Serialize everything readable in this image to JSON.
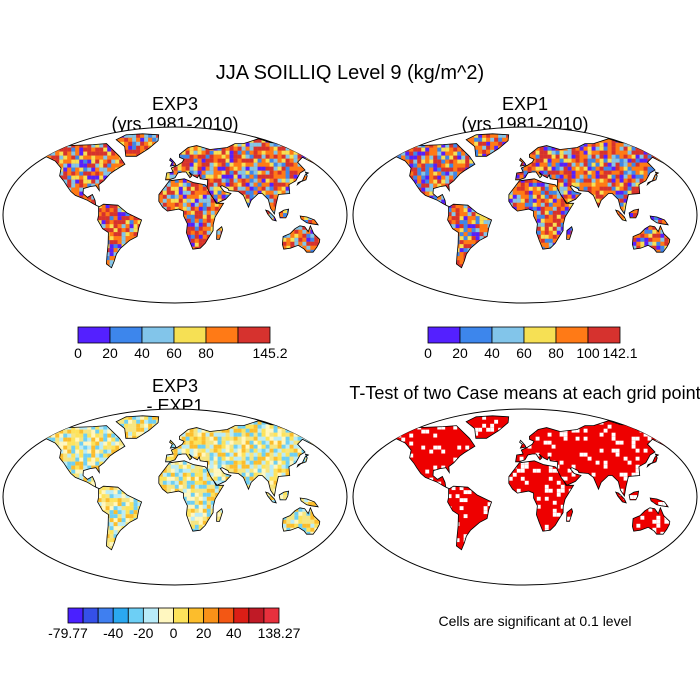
{
  "title": "JJA SOILLIQ Level 9 (kg/m^2)",
  "panels": [
    {
      "id": "exp3",
      "title_lines": [
        "EXP3",
        "(yrs 1981-2010)"
      ]
    },
    {
      "id": "exp1",
      "title_lines": [
        "EXP1",
        "(yrs 1981-2010)"
      ]
    },
    {
      "id": "diff",
      "title_lines": [
        "EXP3",
        "- EXP1"
      ]
    },
    {
      "id": "ttest",
      "title_lines": [
        "T-Test of two Case means at each grid point"
      ]
    }
  ],
  "significance_note": "Cells are significant at 0.1 level",
  "chart_data": [
    {
      "type": "heatmap",
      "title": "EXP3 (yrs 1981-2010)",
      "colorbar": {
        "colors": [
          "#5420ff",
          "#3d86ec",
          "#82c5ea",
          "#f6e054",
          "#ff7a16",
          "#d6322e"
        ],
        "tick_labels": [
          "0",
          "20",
          "40",
          "60",
          "80",
          "145.2"
        ],
        "min": 0,
        "max": 145.2
      }
    },
    {
      "type": "heatmap",
      "title": "EXP1 (yrs 1981-2010)",
      "colorbar": {
        "colors": [
          "#5420ff",
          "#3d86ec",
          "#82c5ea",
          "#f6e054",
          "#ff7a16",
          "#d6322e"
        ],
        "tick_labels": [
          "0",
          "20",
          "40",
          "60",
          "80",
          "100",
          "142.1"
        ],
        "min": 0,
        "max": 142.1
      }
    },
    {
      "type": "heatmap",
      "title": "EXP3 - EXP1",
      "colorbar": {
        "colors": [
          "#4a20ff",
          "#3550e8",
          "#3f7ff0",
          "#2ba8f0",
          "#6dcff5",
          "#b9ecf9",
          "#fff7c0",
          "#fde35b",
          "#fcbd2c",
          "#f99118",
          "#f35714",
          "#db1e16",
          "#c01a26",
          "#e8303d"
        ],
        "tick_labels": [
          "-79.77",
          "-40",
          "-20",
          "0",
          "20",
          "40",
          "138.27"
        ],
        "min": -79.77,
        "max": 138.27
      }
    },
    {
      "type": "heatmap",
      "title": "T-Test of two Case means at each grid point",
      "significance_level": 0.1,
      "color_significant": "#ee0000"
    }
  ]
}
